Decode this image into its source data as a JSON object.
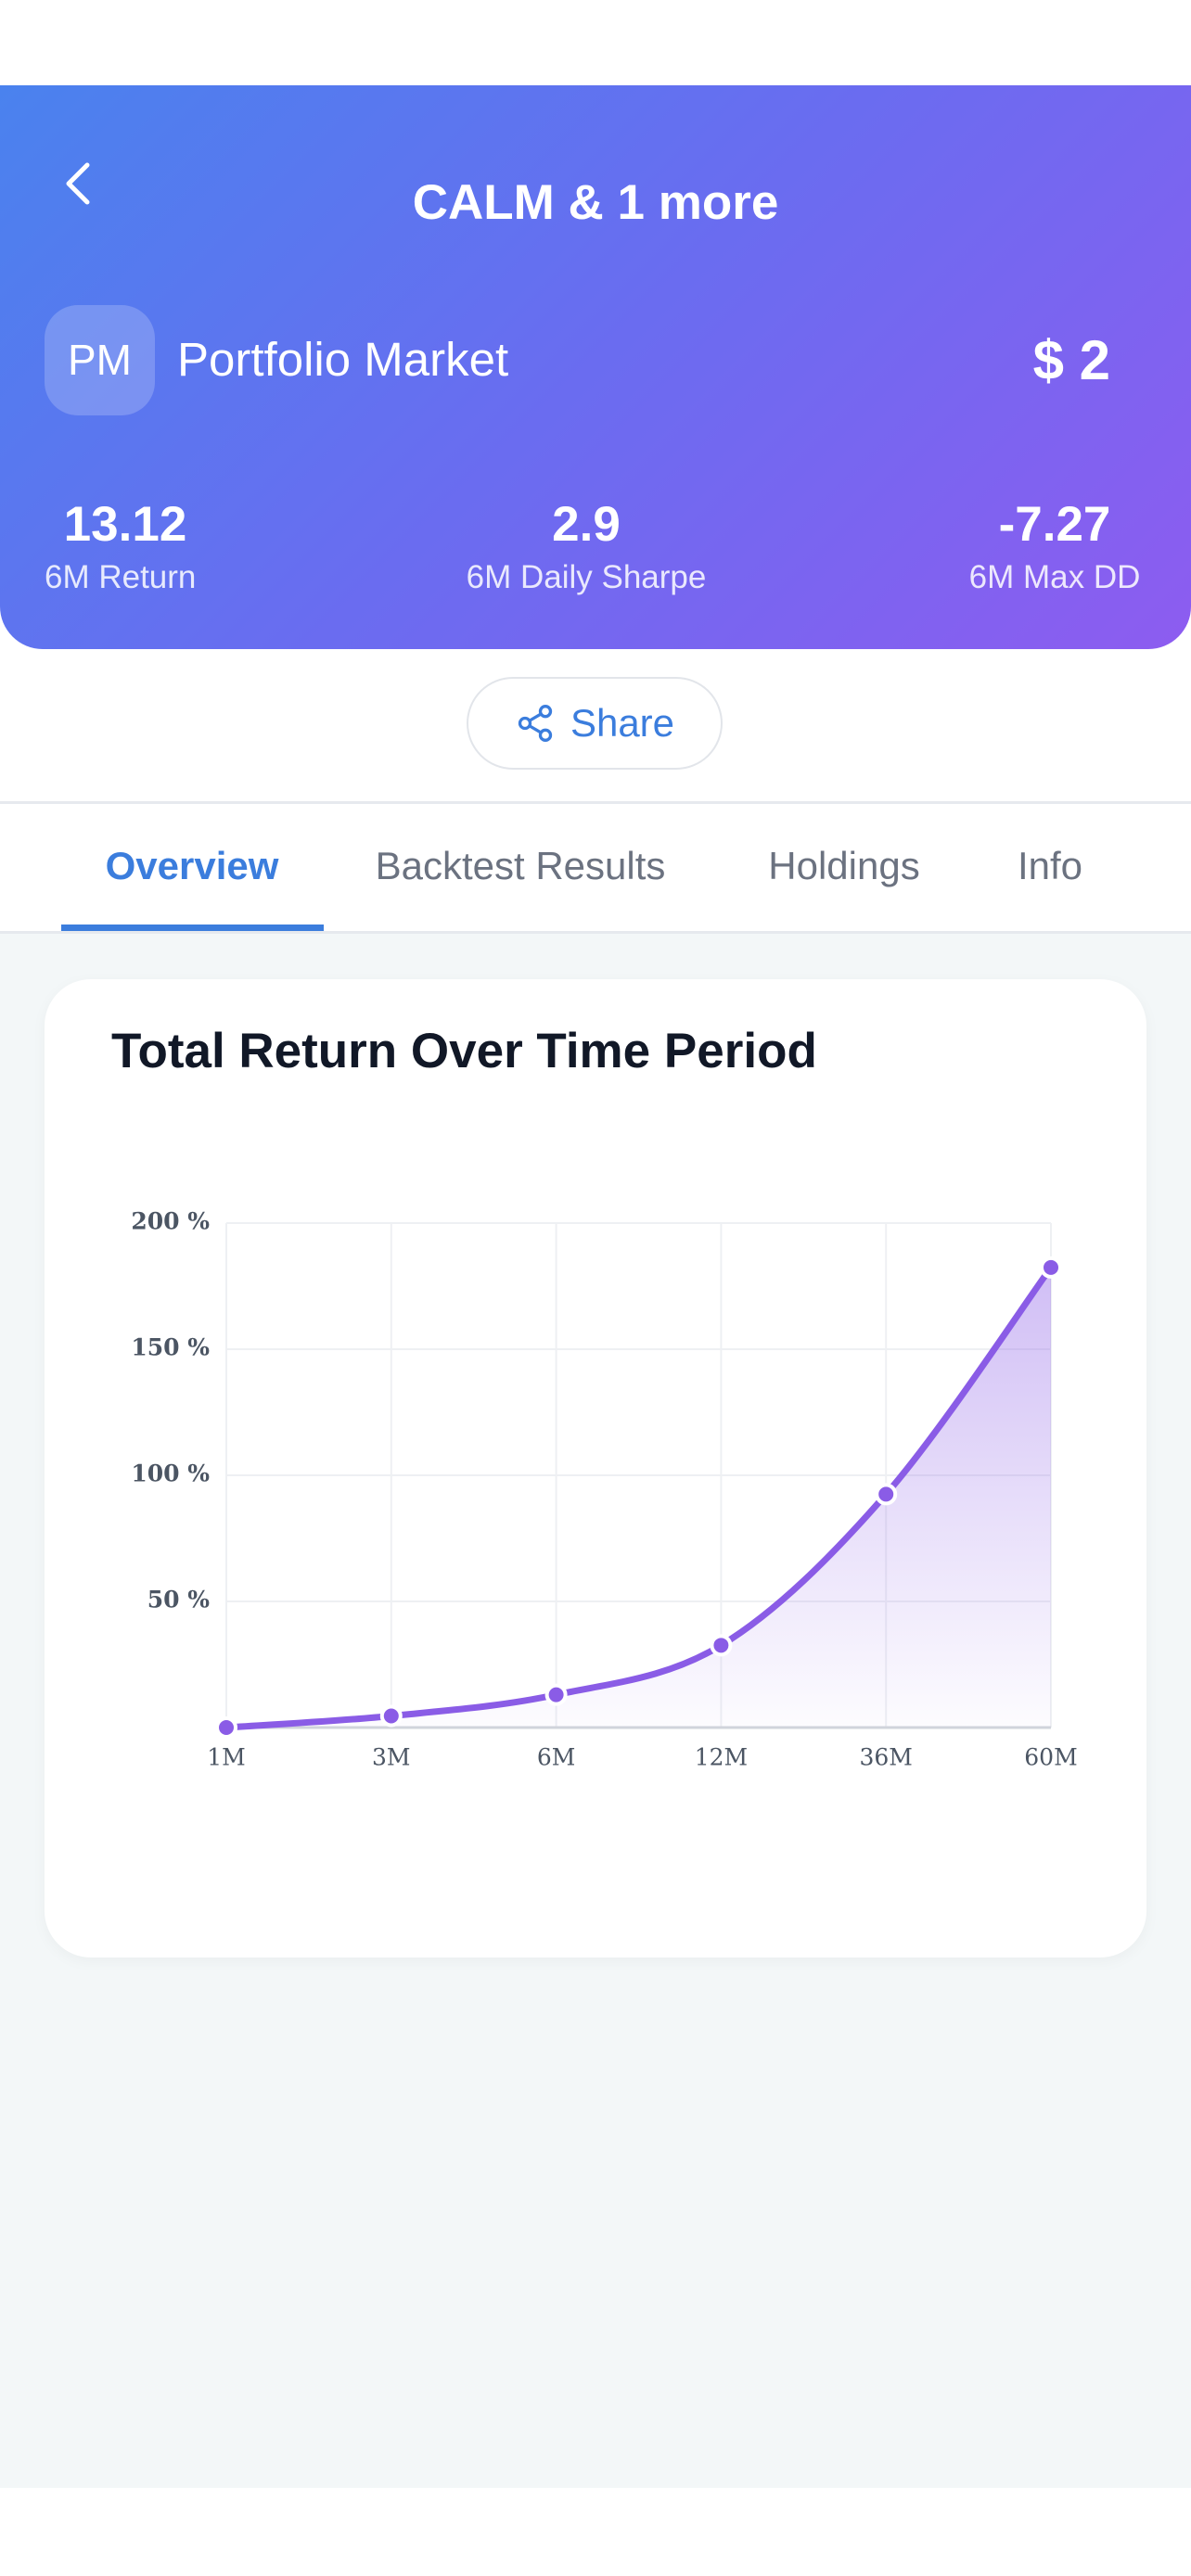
{
  "header": {
    "title": "CALM & 1 more",
    "avatar": "PM",
    "name": "Portfolio Market",
    "price": "$ 2"
  },
  "stats": [
    {
      "value": "13.12",
      "label": "6M Return"
    },
    {
      "value": "2.9",
      "label": "6M Daily Sharpe"
    },
    {
      "value": "-7.27",
      "label": "6M Max DD"
    }
  ],
  "share_button": "Share",
  "tabs": [
    "Overview",
    "Backtest Results",
    "Holdings",
    "Info"
  ],
  "chart_data": {
    "type": "line",
    "title": "Total Return Over Time Period",
    "categories": [
      "1M",
      "3M",
      "6M",
      "12M",
      "36M",
      "60M"
    ],
    "values": [
      0,
      4.6,
      13,
      32.6,
      92.5,
      182.4
    ],
    "color": "#8a5ce6",
    "ylim": [
      0,
      200
    ],
    "yticks": [
      {
        "value": 50,
        "label": "50 %"
      },
      {
        "value": 100,
        "label": "100 %"
      },
      {
        "value": 150,
        "label": "150 %"
      },
      {
        "value": 200,
        "label": "200 %"
      }
    ],
    "grid": true,
    "area": true
  }
}
